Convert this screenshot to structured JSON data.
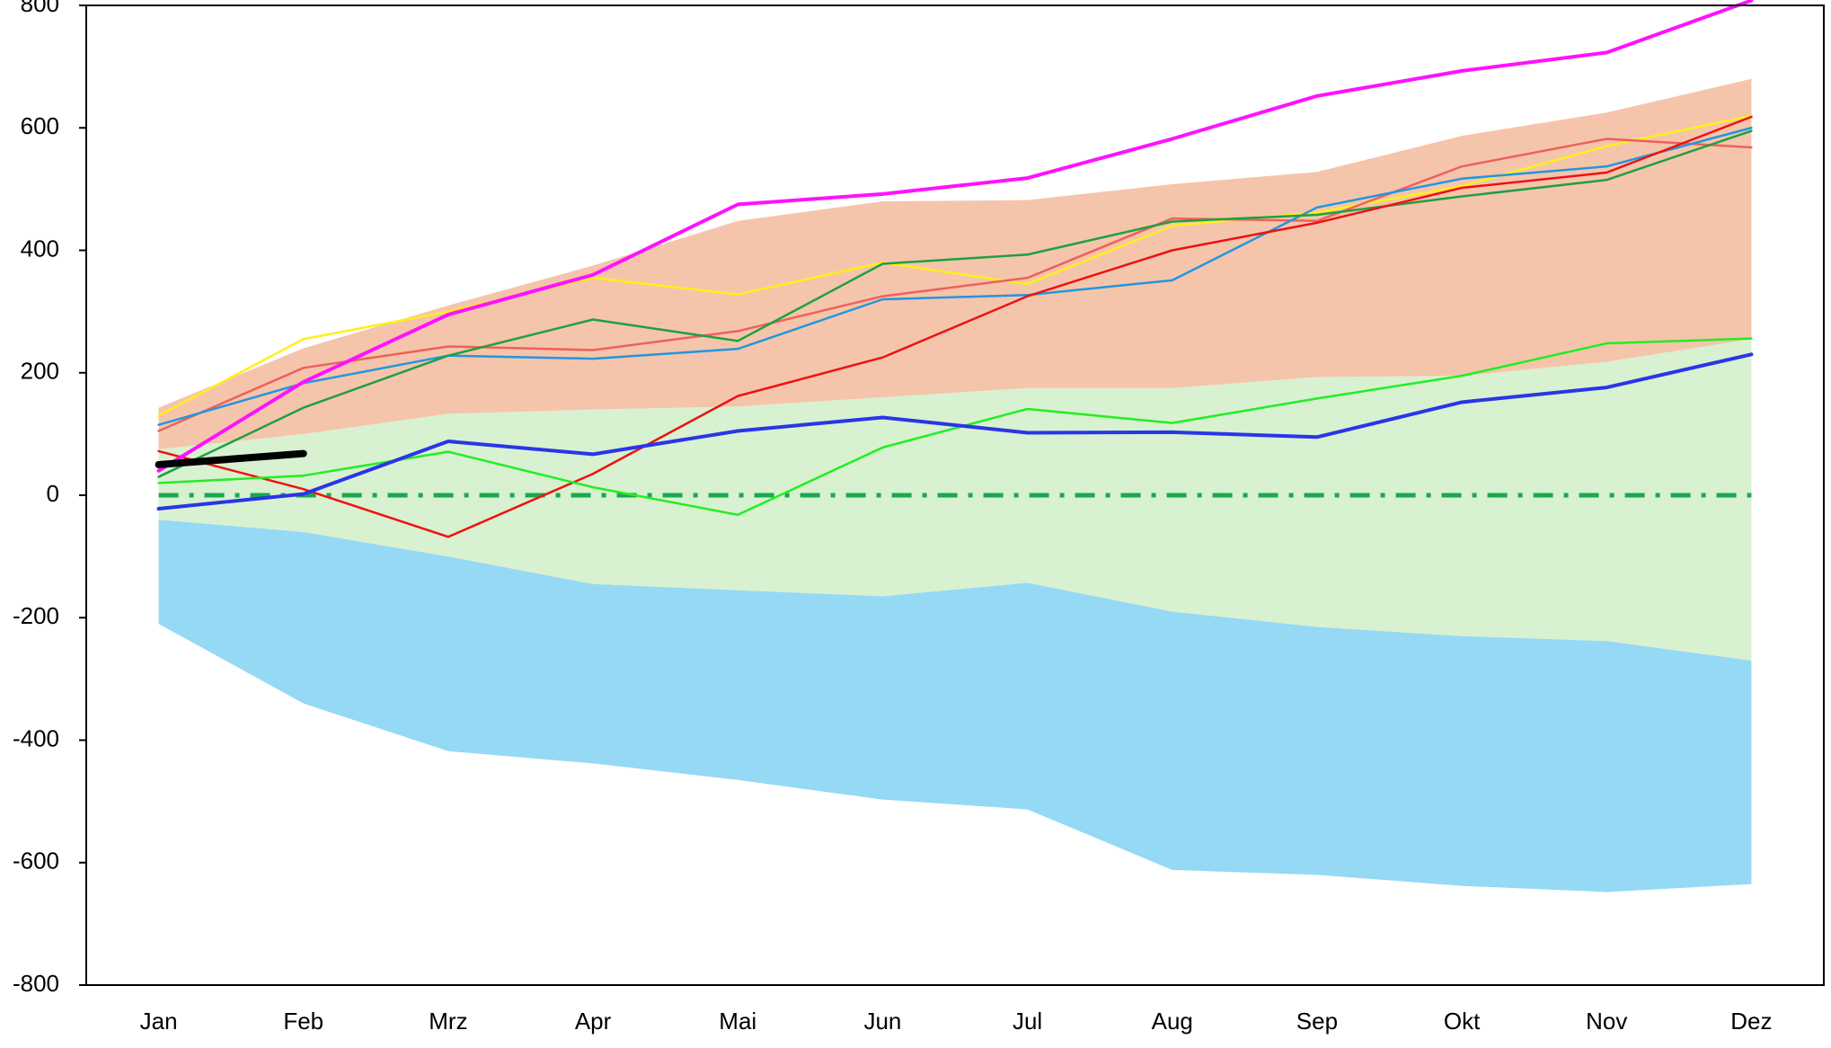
{
  "chart_data": {
    "type": "line",
    "categories": [
      "Jan",
      "Feb",
      "Mrz",
      "Apr",
      "Mai",
      "Jun",
      "Jul",
      "Aug",
      "Sep",
      "Okt",
      "Nov",
      "Dez"
    ],
    "ylim": [
      -800,
      800
    ],
    "yticks": [
      -800,
      -600,
      -400,
      -200,
      0,
      200,
      400,
      600,
      800
    ],
    "areas": [
      {
        "color": "#95d9f5",
        "lower": [
          -210,
          -340,
          -418,
          -438,
          -465,
          -497,
          -513,
          -612,
          -620,
          -638,
          -648,
          -635
        ],
        "upper": [
          -40,
          -60,
          -100,
          -145,
          -155,
          -165,
          -143,
          -190,
          -215,
          -230,
          -238,
          -270
        ]
      },
      {
        "color": "#d8f1d0",
        "lower": [
          -40,
          -60,
          -100,
          -145,
          -155,
          -165,
          -143,
          -190,
          -215,
          -230,
          -238,
          -270
        ],
        "upper": [
          75,
          100,
          133,
          140,
          145,
          160,
          175,
          175,
          193,
          195,
          218,
          255
        ]
      },
      {
        "color": "#f5c5ab",
        "lower": [
          75,
          100,
          133,
          140,
          145,
          160,
          175,
          175,
          193,
          195,
          218,
          255
        ],
        "upper": [
          143,
          240,
          310,
          375,
          448,
          480,
          482,
          508,
          528,
          587,
          625,
          680
        ]
      }
    ],
    "reference_line": {
      "value": 0,
      "color": "#1aa850",
      "linewidth": 5,
      "style": "dashdot"
    },
    "series": [
      {
        "color": "#ffef1a",
        "linewidth": 2.5,
        "values": [
          130,
          255,
          300,
          355,
          328,
          380,
          345,
          440,
          462,
          505,
          570,
          620
        ]
      },
      {
        "color": "#f0605a",
        "linewidth": 2.5,
        "values": [
          105,
          208,
          243,
          237,
          268,
          325,
          355,
          452,
          448,
          537,
          582,
          568
        ]
      },
      {
        "color": "#2196e0",
        "linewidth": 2.5,
        "values": [
          115,
          183,
          228,
          223,
          239,
          320,
          327,
          351,
          470,
          517,
          537,
          600
        ]
      },
      {
        "color": "#1fa040",
        "linewidth": 2.5,
        "values": [
          30,
          143,
          228,
          287,
          252,
          378,
          393,
          447,
          458,
          488,
          515,
          595
        ]
      },
      {
        "color": "#ee1111",
        "linewidth": 2.5,
        "values": [
          72,
          10,
          -68,
          35,
          162,
          225,
          325,
          400,
          445,
          502,
          527,
          618
        ]
      },
      {
        "color": "#22ee22",
        "linewidth": 2.5,
        "values": [
          20,
          32,
          71,
          13,
          -32,
          78,
          141,
          118,
          158,
          195,
          248,
          256
        ]
      },
      {
        "color": "#2a35e8",
        "linewidth": 4,
        "values": [
          -22,
          2,
          88,
          67,
          105,
          127,
          102,
          103,
          95,
          152,
          176,
          230
        ]
      },
      {
        "color": "#ff11ff",
        "linewidth": 4,
        "values": [
          40,
          185,
          295,
          360,
          475,
          492,
          518,
          582,
          652,
          693,
          723,
          808
        ]
      },
      {
        "color": "#000000",
        "linewidth": 8,
        "values": [
          50,
          68,
          null,
          null,
          null,
          null,
          null,
          null,
          null,
          null,
          null,
          null
        ]
      }
    ]
  }
}
